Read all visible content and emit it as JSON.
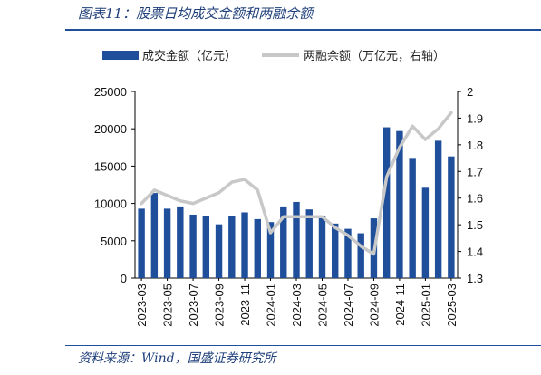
{
  "header": {
    "title": "图表11：股票日均成交金额和两融余额"
  },
  "footer": {
    "source": "资料来源：Wind，国盛证券研究所"
  },
  "chart_data": {
    "type": "bar",
    "categories": [
      "2023-03",
      "2023-04",
      "2023-05",
      "2023-06",
      "2023-07",
      "2023-08",
      "2023-09",
      "2023-10",
      "2023-11",
      "2023-12",
      "2024-01",
      "2024-02",
      "2024-03",
      "2024-04",
      "2024-05",
      "2024-06",
      "2024-07",
      "2024-08",
      "2024-09",
      "2024-10",
      "2024-11",
      "2024-12",
      "2025-01",
      "2025-02",
      "2025-03"
    ],
    "x_tick_labels": [
      "2023-03",
      "2023-05",
      "2023-07",
      "2023-09",
      "2023-11",
      "2024-01",
      "2024-03",
      "2024-05",
      "2024-07",
      "2024-09",
      "2024-11",
      "2025-01",
      "2025-03"
    ],
    "series": [
      {
        "name": "成交金额（亿元）",
        "type": "bar",
        "axis": "left",
        "color": "#1f4e9a",
        "values": [
          9300,
          11400,
          9300,
          9600,
          8500,
          8300,
          7200,
          8300,
          8800,
          7900,
          7500,
          9600,
          10200,
          9200,
          8300,
          7300,
          6600,
          6000,
          8000,
          20200,
          19700,
          16100,
          12100,
          18400,
          16300
        ]
      },
      {
        "name": "两融余额（万亿元，右轴）",
        "type": "line",
        "axis": "right",
        "color": "#c8c8c8",
        "values": [
          1.58,
          1.63,
          1.61,
          1.59,
          1.58,
          1.6,
          1.62,
          1.66,
          1.67,
          1.63,
          1.47,
          1.53,
          1.53,
          1.53,
          1.53,
          1.49,
          1.46,
          1.42,
          1.39,
          1.68,
          1.79,
          1.87,
          1.82,
          1.86,
          1.92
        ]
      }
    ],
    "y_left": {
      "min": 0,
      "max": 25000,
      "ticks": [
        0,
        5000,
        10000,
        15000,
        20000,
        25000
      ]
    },
    "y_right": {
      "min": 1.3,
      "max": 2.0,
      "ticks": [
        "1.3",
        "1.4",
        "1.5",
        "1.6",
        "1.7",
        "1.8",
        "1.9",
        "2"
      ]
    },
    "legend_position": "top",
    "grid": false
  }
}
